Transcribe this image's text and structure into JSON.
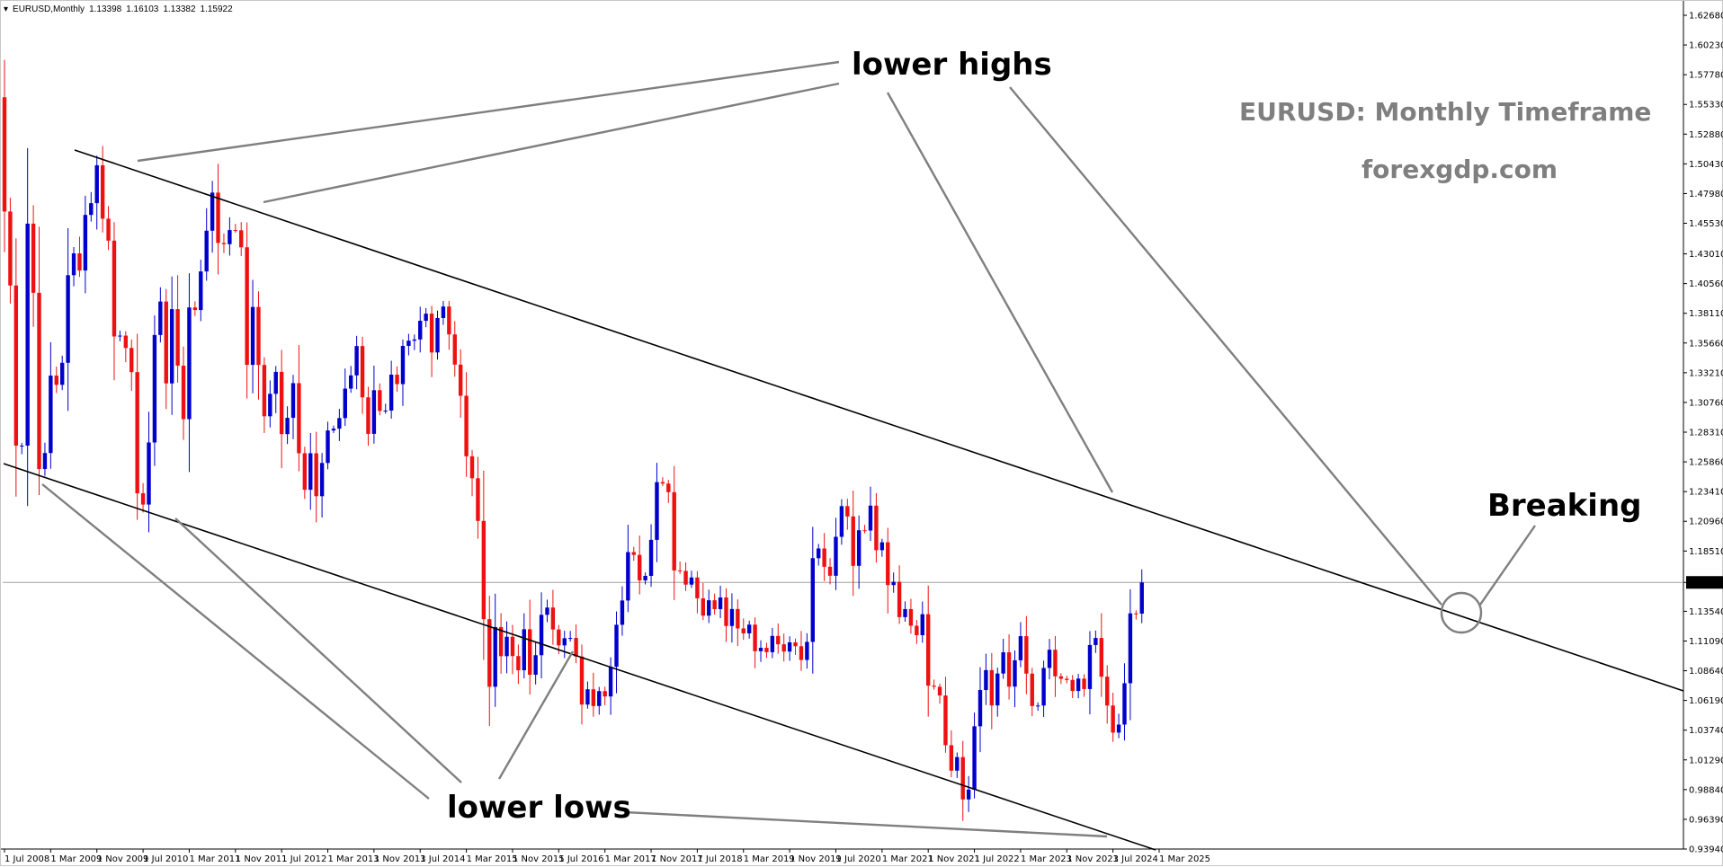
{
  "window": {
    "symbol": "EURUSD,Monthly",
    "open": "1.13398",
    "high": "1.16103",
    "low": "1.13382",
    "close": "1.15922"
  },
  "annotations": {
    "lower_highs": "lower highs",
    "lower_lows": "lower lows",
    "breaking": "Breaking",
    "title": "EURUSD: Monthly Timeframe",
    "website": "forexgdp.com"
  },
  "colors": {
    "bull": "#0000cc",
    "bear": "#ee1111",
    "trendline": "#000000",
    "pointer": "#7f7f7f",
    "current_price_line": "#a0a0a0",
    "background": "#ffffff"
  },
  "chart_data": {
    "type": "candlestick",
    "title": "EURUSD: Monthly Timeframe",
    "timeframe": "Monthly",
    "xlabel": "",
    "ylabel": "",
    "ylim": [
      0.9394,
      1.6268
    ],
    "current_price": 1.15922,
    "y_ticks": [
      "1.62680",
      "1.60230",
      "1.57780",
      "1.55330",
      "1.52880",
      "1.50430",
      "1.47980",
      "1.45530",
      "1.43010",
      "1.40560",
      "1.38110",
      "1.35660",
      "1.33210",
      "1.30760",
      "1.28310",
      "1.25860",
      "1.23410",
      "1.20960",
      "1.18510",
      "1.15922",
      "1.13540",
      "1.11090",
      "1.08640",
      "1.06190",
      "1.03740",
      "1.01290",
      "0.98840",
      "0.96390",
      "0.93940"
    ],
    "x_ticks": [
      "1 Jul 2008",
      "1 Mar 2009",
      "1 Nov 2009",
      "1 Jul 2010",
      "1 Mar 2011",
      "1 Nov 2011",
      "1 Jul 2012",
      "1 Mar 2013",
      "1 Nov 2013",
      "1 Jul 2014",
      "1 Mar 2015",
      "1 Nov 2015",
      "1 Jul 2016",
      "1 Mar 2017",
      "1 Nov 2017",
      "1 Jul 2018",
      "1 Mar 2019",
      "1 Nov 2019",
      "1 Jul 2020",
      "1 Mar 2021",
      "1 Nov 2021",
      "1 Jul 2022",
      "1 Mar 2023",
      "1 Nov 2023",
      "1 Jul 2024",
      "1 Mar 2025"
    ],
    "start_month": "2008-07",
    "closes": [
      1.465,
      1.404,
      1.272,
      1.272,
      1.455,
      1.398,
      1.2527,
      1.2659,
      1.3297,
      1.3221,
      1.3403,
      1.4125,
      1.4305,
      1.4164,
      1.4622,
      1.4719,
      1.5031,
      1.4591,
      1.441,
      1.362,
      1.3627,
      1.3525,
      1.3326,
      1.2327,
      1.2234,
      1.2746,
      1.3632,
      1.3908,
      1.3233,
      1.3845,
      1.3379,
      1.2938,
      1.3859,
      1.3838,
      1.4156,
      1.4492,
      1.4806,
      1.4391,
      1.4381,
      1.4497,
      1.4495,
      1.4355,
      1.3386,
      1.3863,
      1.3385,
      1.2962,
      1.3147,
      1.3328,
      1.2815,
      1.2949,
      1.3235,
      1.2657,
      1.2356,
      1.2657,
      1.2303,
      1.2577,
      1.2845,
      1.286,
      1.2947,
      1.319,
      1.3299,
      1.3541,
      1.3118,
      1.2817,
      1.3177,
      1.3006,
      1.3009,
      1.3305,
      1.3227,
      1.3542,
      1.3585,
      1.3595,
      1.3749,
      1.3808,
      1.3488,
      1.3772,
      1.3867,
      1.3637,
      1.3388,
      1.3131,
      1.2632,
      1.2451,
      1.2099,
      1.1289,
      1.0732,
      1.1224,
      1.0984,
      1.1144,
      1.0985,
      1.0868,
      1.1206,
      1.0831,
      1.0992,
      1.1325,
      1.1385,
      1.1204,
      1.1073,
      1.1132,
      1.1134,
      1.0981,
      1.0585,
      1.0711,
      1.0573,
      1.0696,
      1.0652,
      1.0897,
      1.1243,
      1.1443,
      1.1842,
      1.1819,
      1.1609,
      1.1646,
      1.1943,
      1.2419,
      1.2407,
      1.2336,
      1.1691,
      1.1687,
      1.1574,
      1.1633,
      1.1461,
      1.1318,
      1.1445,
      1.1372,
      1.1468,
      1.1233,
      1.1373,
      1.1213,
      1.1172,
      1.1244,
      1.1025,
      1.1053,
      1.1017,
      1.1151,
      1.1082,
      1.1022,
      1.1098,
      1.1066,
      1.0953,
      1.1102,
      1.1792,
      1.1872,
      1.1721,
      1.1647,
      1.1968,
      1.2221,
      1.2136,
      1.1729,
      1.2022,
      1.202,
      1.2225,
      1.1858,
      1.1923,
      1.157,
      1.1597,
      1.1306,
      1.1372,
      1.1235,
      1.1157,
      1.133,
      1.0741,
      1.0732,
      1.066,
      1.025,
      1.004,
      1.0152,
      0.9803,
      0.9884,
      1.0406,
      1.0705,
      1.0869,
      1.0578,
      1.0841,
      1.1016,
      1.0733,
      1.095,
      1.1149,
      1.084,
      1.0573,
      1.0577,
      1.0887,
      1.1037,
      1.0818,
      1.0798,
      1.0788,
      1.0697,
      1.0799,
      1.0713,
      1.1076,
      1.1134,
      1.0815,
      1.0577,
      1.0354,
      1.042,
      1.0761,
      1.1337,
      1.1335,
      1.1592
    ]
  }
}
